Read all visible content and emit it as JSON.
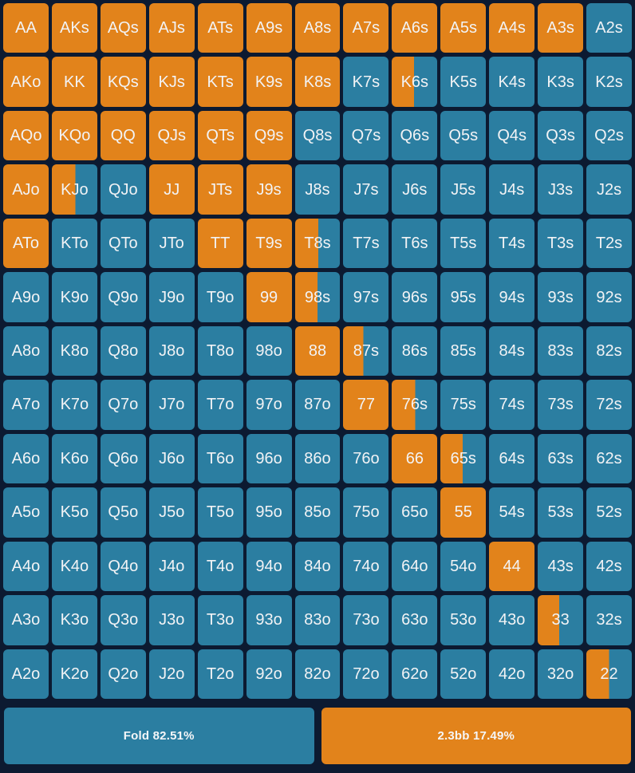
{
  "colors": {
    "background": "#0c1a31",
    "fold": "#2b7ea1",
    "raise": "#e2831b",
    "text": "#f2f3f5"
  },
  "grid": {
    "rows": 13,
    "cols": 13,
    "cells": [
      {
        "hand": "AA",
        "raise": 1
      },
      {
        "hand": "AKs",
        "raise": 1
      },
      {
        "hand": "AQs",
        "raise": 1
      },
      {
        "hand": "AJs",
        "raise": 1
      },
      {
        "hand": "ATs",
        "raise": 1
      },
      {
        "hand": "A9s",
        "raise": 1
      },
      {
        "hand": "A8s",
        "raise": 1
      },
      {
        "hand": "A7s",
        "raise": 1
      },
      {
        "hand": "A6s",
        "raise": 1
      },
      {
        "hand": "A5s",
        "raise": 1
      },
      {
        "hand": "A4s",
        "raise": 1
      },
      {
        "hand": "A3s",
        "raise": 1
      },
      {
        "hand": "A2s",
        "raise": 0
      },
      {
        "hand": "AKo",
        "raise": 1
      },
      {
        "hand": "KK",
        "raise": 1
      },
      {
        "hand": "KQs",
        "raise": 1
      },
      {
        "hand": "KJs",
        "raise": 1
      },
      {
        "hand": "KTs",
        "raise": 1
      },
      {
        "hand": "K9s",
        "raise": 1
      },
      {
        "hand": "K8s",
        "raise": 1
      },
      {
        "hand": "K7s",
        "raise": 0
      },
      {
        "hand": "K6s",
        "raise": 0.49
      },
      {
        "hand": "K5s",
        "raise": 0
      },
      {
        "hand": "K4s",
        "raise": 0
      },
      {
        "hand": "K3s",
        "raise": 0
      },
      {
        "hand": "K2s",
        "raise": 0
      },
      {
        "hand": "AQo",
        "raise": 1
      },
      {
        "hand": "KQo",
        "raise": 1
      },
      {
        "hand": "QQ",
        "raise": 1
      },
      {
        "hand": "QJs",
        "raise": 1
      },
      {
        "hand": "QTs",
        "raise": 1
      },
      {
        "hand": "Q9s",
        "raise": 1
      },
      {
        "hand": "Q8s",
        "raise": 0
      },
      {
        "hand": "Q7s",
        "raise": 0
      },
      {
        "hand": "Q6s",
        "raise": 0
      },
      {
        "hand": "Q5s",
        "raise": 0
      },
      {
        "hand": "Q4s",
        "raise": 0
      },
      {
        "hand": "Q3s",
        "raise": 0
      },
      {
        "hand": "Q2s",
        "raise": 0
      },
      {
        "hand": "AJo",
        "raise": 1
      },
      {
        "hand": "KJo",
        "raise": 0.52
      },
      {
        "hand": "QJo",
        "raise": 0
      },
      {
        "hand": "JJ",
        "raise": 1
      },
      {
        "hand": "JTs",
        "raise": 1
      },
      {
        "hand": "J9s",
        "raise": 1
      },
      {
        "hand": "J8s",
        "raise": 0
      },
      {
        "hand": "J7s",
        "raise": 0
      },
      {
        "hand": "J6s",
        "raise": 0
      },
      {
        "hand": "J5s",
        "raise": 0
      },
      {
        "hand": "J4s",
        "raise": 0
      },
      {
        "hand": "J3s",
        "raise": 0
      },
      {
        "hand": "J2s",
        "raise": 0
      },
      {
        "hand": "ATo",
        "raise": 1
      },
      {
        "hand": "KTo",
        "raise": 0
      },
      {
        "hand": "QTo",
        "raise": 0
      },
      {
        "hand": "JTo",
        "raise": 0
      },
      {
        "hand": "TT",
        "raise": 1
      },
      {
        "hand": "T9s",
        "raise": 1
      },
      {
        "hand": "T8s",
        "raise": 0.52
      },
      {
        "hand": "T7s",
        "raise": 0
      },
      {
        "hand": "T6s",
        "raise": 0
      },
      {
        "hand": "T5s",
        "raise": 0
      },
      {
        "hand": "T4s",
        "raise": 0
      },
      {
        "hand": "T3s",
        "raise": 0
      },
      {
        "hand": "T2s",
        "raise": 0
      },
      {
        "hand": "A9o",
        "raise": 0
      },
      {
        "hand": "K9o",
        "raise": 0
      },
      {
        "hand": "Q9o",
        "raise": 0
      },
      {
        "hand": "J9o",
        "raise": 0
      },
      {
        "hand": "T9o",
        "raise": 0
      },
      {
        "hand": "99",
        "raise": 1
      },
      {
        "hand": "98s",
        "raise": 0.5
      },
      {
        "hand": "97s",
        "raise": 0
      },
      {
        "hand": "96s",
        "raise": 0
      },
      {
        "hand": "95s",
        "raise": 0
      },
      {
        "hand": "94s",
        "raise": 0
      },
      {
        "hand": "93s",
        "raise": 0
      },
      {
        "hand": "92s",
        "raise": 0
      },
      {
        "hand": "A8o",
        "raise": 0
      },
      {
        "hand": "K8o",
        "raise": 0
      },
      {
        "hand": "Q8o",
        "raise": 0
      },
      {
        "hand": "J8o",
        "raise": 0
      },
      {
        "hand": "T8o",
        "raise": 0
      },
      {
        "hand": "98o",
        "raise": 0
      },
      {
        "hand": "88",
        "raise": 1
      },
      {
        "hand": "87s",
        "raise": 0.45
      },
      {
        "hand": "86s",
        "raise": 0
      },
      {
        "hand": "85s",
        "raise": 0
      },
      {
        "hand": "84s",
        "raise": 0
      },
      {
        "hand": "83s",
        "raise": 0
      },
      {
        "hand": "82s",
        "raise": 0
      },
      {
        "hand": "A7o",
        "raise": 0
      },
      {
        "hand": "K7o",
        "raise": 0
      },
      {
        "hand": "Q7o",
        "raise": 0
      },
      {
        "hand": "J7o",
        "raise": 0
      },
      {
        "hand": "T7o",
        "raise": 0
      },
      {
        "hand": "97o",
        "raise": 0
      },
      {
        "hand": "87o",
        "raise": 0
      },
      {
        "hand": "77",
        "raise": 1
      },
      {
        "hand": "76s",
        "raise": 0.52
      },
      {
        "hand": "75s",
        "raise": 0
      },
      {
        "hand": "74s",
        "raise": 0
      },
      {
        "hand": "73s",
        "raise": 0
      },
      {
        "hand": "72s",
        "raise": 0
      },
      {
        "hand": "A6o",
        "raise": 0
      },
      {
        "hand": "K6o",
        "raise": 0
      },
      {
        "hand": "Q6o",
        "raise": 0
      },
      {
        "hand": "J6o",
        "raise": 0
      },
      {
        "hand": "T6o",
        "raise": 0
      },
      {
        "hand": "96o",
        "raise": 0
      },
      {
        "hand": "86o",
        "raise": 0
      },
      {
        "hand": "76o",
        "raise": 0
      },
      {
        "hand": "66",
        "raise": 1
      },
      {
        "hand": "65s",
        "raise": 0.49
      },
      {
        "hand": "64s",
        "raise": 0
      },
      {
        "hand": "63s",
        "raise": 0
      },
      {
        "hand": "62s",
        "raise": 0
      },
      {
        "hand": "A5o",
        "raise": 0
      },
      {
        "hand": "K5o",
        "raise": 0
      },
      {
        "hand": "Q5o",
        "raise": 0
      },
      {
        "hand": "J5o",
        "raise": 0
      },
      {
        "hand": "T5o",
        "raise": 0
      },
      {
        "hand": "95o",
        "raise": 0
      },
      {
        "hand": "85o",
        "raise": 0
      },
      {
        "hand": "75o",
        "raise": 0
      },
      {
        "hand": "65o",
        "raise": 0
      },
      {
        "hand": "55",
        "raise": 1
      },
      {
        "hand": "54s",
        "raise": 0
      },
      {
        "hand": "53s",
        "raise": 0
      },
      {
        "hand": "52s",
        "raise": 0
      },
      {
        "hand": "A4o",
        "raise": 0
      },
      {
        "hand": "K4o",
        "raise": 0
      },
      {
        "hand": "Q4o",
        "raise": 0
      },
      {
        "hand": "J4o",
        "raise": 0
      },
      {
        "hand": "T4o",
        "raise": 0
      },
      {
        "hand": "94o",
        "raise": 0
      },
      {
        "hand": "84o",
        "raise": 0
      },
      {
        "hand": "74o",
        "raise": 0
      },
      {
        "hand": "64o",
        "raise": 0
      },
      {
        "hand": "54o",
        "raise": 0
      },
      {
        "hand": "44",
        "raise": 1
      },
      {
        "hand": "43s",
        "raise": 0
      },
      {
        "hand": "42s",
        "raise": 0
      },
      {
        "hand": "A3o",
        "raise": 0
      },
      {
        "hand": "K3o",
        "raise": 0
      },
      {
        "hand": "Q3o",
        "raise": 0
      },
      {
        "hand": "J3o",
        "raise": 0
      },
      {
        "hand": "T3o",
        "raise": 0
      },
      {
        "hand": "93o",
        "raise": 0
      },
      {
        "hand": "83o",
        "raise": 0
      },
      {
        "hand": "73o",
        "raise": 0
      },
      {
        "hand": "63o",
        "raise": 0
      },
      {
        "hand": "53o",
        "raise": 0
      },
      {
        "hand": "43o",
        "raise": 0
      },
      {
        "hand": "33",
        "raise": 0.47
      },
      {
        "hand": "32s",
        "raise": 0
      },
      {
        "hand": "A2o",
        "raise": 0
      },
      {
        "hand": "K2o",
        "raise": 0
      },
      {
        "hand": "Q2o",
        "raise": 0
      },
      {
        "hand": "J2o",
        "raise": 0
      },
      {
        "hand": "T2o",
        "raise": 0
      },
      {
        "hand": "92o",
        "raise": 0
      },
      {
        "hand": "82o",
        "raise": 0
      },
      {
        "hand": "72o",
        "raise": 0
      },
      {
        "hand": "62o",
        "raise": 0
      },
      {
        "hand": "52o",
        "raise": 0
      },
      {
        "hand": "42o",
        "raise": 0
      },
      {
        "hand": "32o",
        "raise": 0
      },
      {
        "hand": "22",
        "raise": 0.5
      }
    ]
  },
  "actions_bar": {
    "fold": {
      "label": "Fold 82.51%",
      "action": "Fold",
      "frequency_pct": 82.51
    },
    "raise": {
      "label": "2.3bb 17.49%",
      "action": "2.3bb",
      "frequency_pct": 17.49
    }
  }
}
